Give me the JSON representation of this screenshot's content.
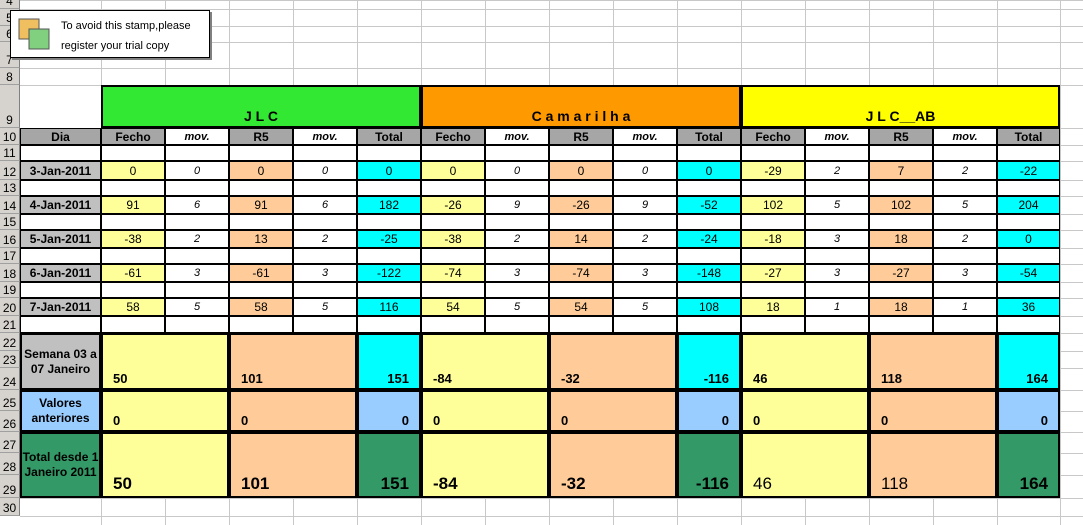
{
  "stamp": {
    "line1": "To avoid this stamp,please",
    "line2": "register your trial copy",
    "icon": "trial-stamp-icon"
  },
  "row_numbers": [
    "4",
    "5",
    "6",
    "7",
    "8",
    "9",
    "10",
    "11",
    "12",
    "13",
    "14",
    "15",
    "16",
    "17",
    "18",
    "19",
    "20",
    "21",
    "22",
    "23",
    "24",
    "25",
    "26",
    "27",
    "28",
    "29",
    "30"
  ],
  "groups": [
    {
      "title": "J  L  C",
      "color": "#33e833"
    },
    {
      "title": "C a m a r i l h a",
      "color": "#ff9900"
    },
    {
      "title": "J L C__AB",
      "color": "#ffff00"
    }
  ],
  "columns": {
    "dia": "Dia",
    "fecho": "Fecho",
    "mov": "mov.",
    "r5": "R5",
    "total": "Total"
  },
  "days": [
    {
      "date": "3-Jan-2011",
      "vals": [
        [
          "0",
          "0",
          "0",
          "0",
          "0"
        ],
        [
          "0",
          "0",
          "0",
          "0",
          "0"
        ],
        [
          "-29",
          "2",
          "7",
          "2",
          "-22"
        ]
      ]
    },
    {
      "date": "4-Jan-2011",
      "vals": [
        [
          "91",
          "6",
          "91",
          "6",
          "182"
        ],
        [
          "-26",
          "9",
          "-26",
          "9",
          "-52"
        ],
        [
          "102",
          "5",
          "102",
          "5",
          "204"
        ]
      ]
    },
    {
      "date": "5-Jan-2011",
      "vals": [
        [
          "-38",
          "2",
          "13",
          "2",
          "-25"
        ],
        [
          "-38",
          "2",
          "14",
          "2",
          "-24"
        ],
        [
          "-18",
          "3",
          "18",
          "2",
          "0"
        ]
      ]
    },
    {
      "date": "6-Jan-2011",
      "vals": [
        [
          "-61",
          "3",
          "-61",
          "3",
          "-122"
        ],
        [
          "-74",
          "3",
          "-74",
          "3",
          "-148"
        ],
        [
          "-27",
          "3",
          "-27",
          "3",
          "-54"
        ]
      ]
    },
    {
      "date": "7-Jan-2011",
      "vals": [
        [
          "58",
          "5",
          "58",
          "5",
          "116"
        ],
        [
          "54",
          "5",
          "54",
          "5",
          "108"
        ],
        [
          "18",
          "1",
          "18",
          "1",
          "36"
        ]
      ]
    }
  ],
  "summary": [
    {
      "label": "Semana 03 a 07 Janeiro",
      "vals": [
        [
          "50",
          "101",
          "151"
        ],
        [
          "-84",
          "-32",
          "-116"
        ],
        [
          "46",
          "118",
          "164"
        ]
      ]
    },
    {
      "label": "Valores anteriores",
      "vals": [
        [
          "0",
          "0",
          "0"
        ],
        [
          "0",
          "0",
          "0"
        ],
        [
          "0",
          "0",
          "0"
        ]
      ]
    },
    {
      "label": "Total desde 1 Janeiro 2011",
      "vals": [
        [
          "50",
          "101",
          "151"
        ],
        [
          "-84",
          "-32",
          "-116"
        ],
        [
          "46",
          "118",
          "164"
        ]
      ]
    }
  ],
  "colors": {
    "header_gray": "#a6a6a6",
    "date_gray": "#c0c0c0",
    "yellow": "#ffff99",
    "peach": "#ffcc99",
    "cyan": "#00ffff",
    "light_blue": "#99ccff",
    "teal_green": "#339966",
    "blue_label": "#99ccff",
    "green_label": "#339966"
  }
}
